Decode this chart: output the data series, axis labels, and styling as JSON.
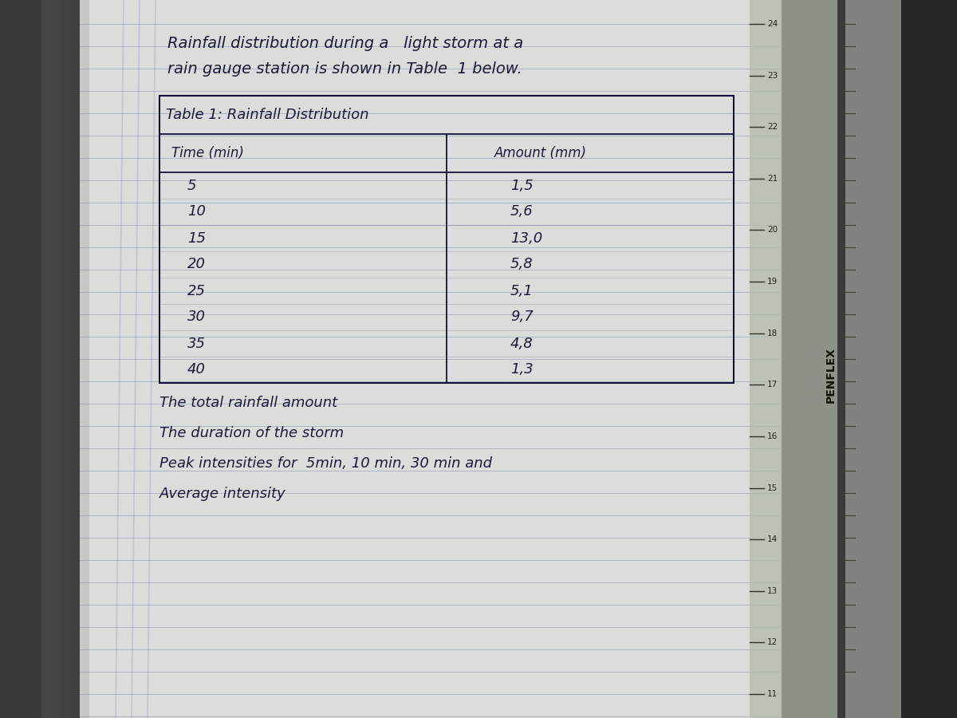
{
  "title_line1": "Rainfall distribution during a   light storm at a",
  "title_line2": "rain gauge station is shown in Table  1 below.",
  "table_title": "Table 1: Rainfall Distribution",
  "col1_header": "Time (min)",
  "col2_header": "Amount (mm)",
  "time_values": [
    5,
    10,
    15,
    20,
    25,
    30,
    35,
    40
  ],
  "amount_values": [
    "1,5",
    "5,6",
    "13,0",
    "5,8",
    "5,1",
    "9,7",
    "4,8",
    "1,3"
  ],
  "footer_lines": [
    "The total rainfall amount",
    "The duration of the storm",
    "Peak intensities for  5min, 10 min, 30 min and",
    "Average intensity"
  ],
  "outer_bg_color": "#3a3a3a",
  "page_color": "#dcdcda",
  "line_color": "#8899bb",
  "ink_color": "#1a1a3a",
  "table_border_color": "#111133",
  "ruler_numbers": [
    24,
    23,
    22,
    21,
    20,
    19,
    18,
    17,
    16,
    15,
    14,
    13,
    12,
    11
  ],
  "font_size_title": 14,
  "font_size_table": 13,
  "font_size_footer": 13
}
